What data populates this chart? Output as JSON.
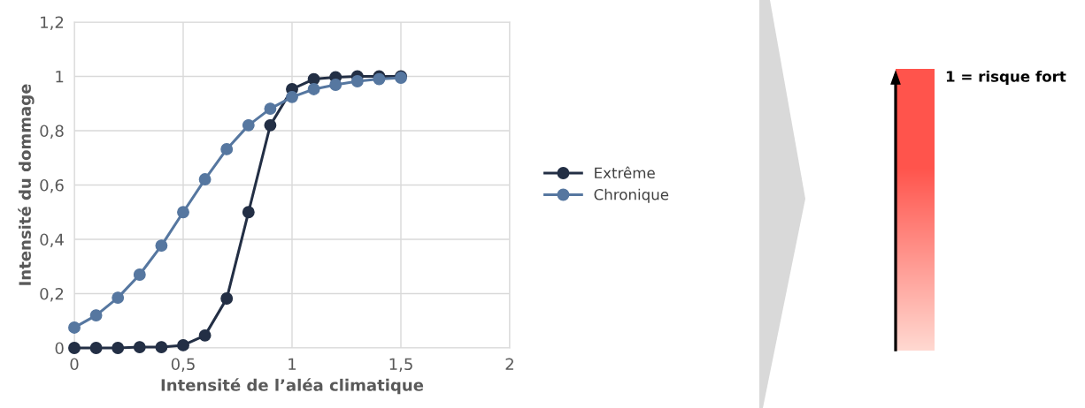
{
  "chart_data": {
    "type": "line",
    "xlabel": "Intensité de l’aléa climatique",
    "ylabel": "Intensité du dommage",
    "x": [
      0,
      0.1,
      0.2,
      0.3,
      0.4,
      0.5,
      0.6,
      0.7,
      0.8,
      0.9,
      1.0,
      1.1,
      1.2,
      1.3,
      1.4,
      1.5
    ],
    "series": [
      {
        "name": "Extrême",
        "color": "#232f45",
        "values": [
          0,
          0,
          0,
          0.003,
          0.003,
          0.01,
          0.046,
          0.182,
          0.5,
          0.82,
          0.953,
          0.99,
          0.997,
          1,
          1,
          1
        ]
      },
      {
        "name": "Chronique",
        "color": "#5677a0",
        "values": [
          0.075,
          0.12,
          0.185,
          0.27,
          0.377,
          0.5,
          0.621,
          0.732,
          0.82,
          0.881,
          0.924,
          0.953,
          0.969,
          0.982,
          0.99,
          0.995
        ]
      }
    ],
    "xlim": [
      0,
      2
    ],
    "xticks": [
      0,
      {
        "value": 0.5,
        "label": "0,5"
      },
      1,
      {
        "value": 1.5,
        "label": "1,5"
      },
      2
    ],
    "ylim": [
      0,
      1.2
    ],
    "yticks": [
      0,
      {
        "value": 0.2,
        "label": "0,2"
      },
      {
        "value": 0.4,
        "label": "0,4"
      },
      {
        "value": 0.6,
        "label": "0,6"
      },
      {
        "value": 0.8,
        "label": "0,8"
      },
      1,
      {
        "value": 1.2,
        "label": "1,2"
      }
    ],
    "grid": true,
    "legend": "right",
    "marker": "circle",
    "line_style": "solid",
    "annotations": [
      "1 = risque fort"
    ]
  }
}
